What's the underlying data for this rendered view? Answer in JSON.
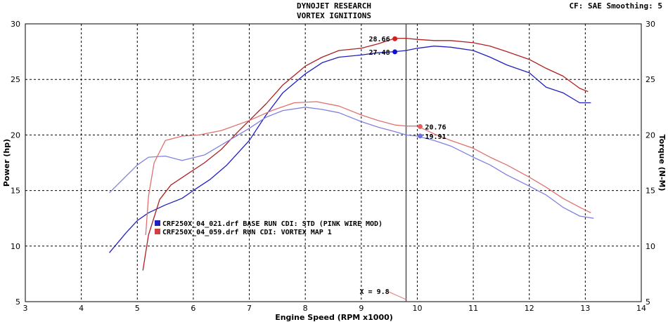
{
  "header": {
    "title_line1": "DYNOJET RESEARCH",
    "title_line2": "VORTEX IGNITIONS",
    "cf_info": "CF: SAE  Smoothing: 5"
  },
  "chart_data": {
    "type": "line",
    "title": "DYNOJET RESEARCH VORTEX IGNITIONS",
    "xlabel": "Engine Speed (RPM x1000)",
    "ylabel_left": "Power (hp)",
    "ylabel_right": "Torque (N-M)",
    "xlim": [
      3,
      14
    ],
    "ylim": [
      5,
      30
    ],
    "x_ticks": [
      "3",
      "4",
      "5",
      "6",
      "7",
      "8",
      "9",
      "10",
      "11",
      "12",
      "13",
      "14"
    ],
    "y_ticks_left": [
      "5",
      "10",
      "15",
      "20",
      "25",
      "30"
    ],
    "y_ticks_right": [
      "5",
      "10",
      "15",
      "20",
      "25",
      "30"
    ],
    "grid": true,
    "cursor": {
      "x": 9.8,
      "label": "X = 9.8"
    },
    "legend": [
      {
        "label": "CRF250X_04_021.drf BASE RUN CDI: STD (PINK WIRE MOD)",
        "color": "#2020c0"
      },
      {
        "label": "CRF250X_04_059.drf RUN CDI: VORTEX MAP 1",
        "color": "#d04040"
      }
    ],
    "series": [
      {
        "name": "BASE RUN CDI: STD (PINK WIRE MOD) - Power",
        "color": "#2020c0",
        "x": [
          4.5,
          4.8,
          5.0,
          5.2,
          5.5,
          5.8,
          6.0,
          6.3,
          6.6,
          7.0,
          7.3,
          7.6,
          8.0,
          8.3,
          8.6,
          9.0,
          9.3,
          9.6,
          9.8,
          10.0,
          10.3,
          10.6,
          11.0,
          11.3,
          11.6,
          12.0,
          12.3,
          12.6,
          12.9,
          13.1
        ],
        "y": [
          9.4,
          11.2,
          12.3,
          13.0,
          13.7,
          14.3,
          15.0,
          16.0,
          17.3,
          19.5,
          21.8,
          23.8,
          25.5,
          26.5,
          27.0,
          27.2,
          27.4,
          27.5,
          27.6,
          27.8,
          28.0,
          27.9,
          27.6,
          27.0,
          26.3,
          25.6,
          24.3,
          23.8,
          22.9,
          22.9
        ]
      },
      {
        "name": "RUN CDI: VORTEX MAP 1 - Power",
        "color": "#b02020",
        "x": [
          5.1,
          5.2,
          5.4,
          5.6,
          5.9,
          6.2,
          6.5,
          6.8,
          7.0,
          7.3,
          7.6,
          8.0,
          8.3,
          8.6,
          9.0,
          9.3,
          9.6,
          9.8,
          10.0,
          10.3,
          10.6,
          11.0,
          11.3,
          11.6,
          12.0,
          12.3,
          12.6,
          12.9,
          13.05
        ],
        "y": [
          7.8,
          11.0,
          14.2,
          15.5,
          16.5,
          17.5,
          18.7,
          20.3,
          21.3,
          22.8,
          24.5,
          26.2,
          27.0,
          27.6,
          27.8,
          28.2,
          28.7,
          28.7,
          28.6,
          28.5,
          28.5,
          28.3,
          28.0,
          27.5,
          26.8,
          26.0,
          25.3,
          24.2,
          23.9
        ]
      },
      {
        "name": "BASE RUN CDI: STD (PINK WIRE MOD) - Torque",
        "color": "#8080e0",
        "x": [
          4.5,
          4.7,
          5.0,
          5.2,
          5.5,
          5.8,
          6.2,
          6.6,
          7.0,
          7.3,
          7.6,
          8.0,
          8.3,
          8.6,
          9.0,
          9.3,
          9.6,
          9.8,
          10.0,
          10.3,
          10.6,
          11.0,
          11.3,
          11.6,
          12.0,
          12.3,
          12.6,
          12.9,
          13.15
        ],
        "y": [
          14.8,
          15.8,
          17.3,
          18.0,
          18.1,
          17.7,
          18.2,
          19.4,
          20.6,
          21.6,
          22.2,
          22.5,
          22.3,
          22.0,
          21.2,
          20.7,
          20.3,
          20.0,
          19.9,
          19.5,
          19.0,
          18.0,
          17.3,
          16.4,
          15.4,
          14.6,
          13.5,
          12.7,
          12.5
        ]
      },
      {
        "name": "RUN CDI: VORTEX MAP 1 - Torque",
        "color": "#e07070",
        "x": [
          5.15,
          5.2,
          5.3,
          5.5,
          5.8,
          6.1,
          6.5,
          7.0,
          7.4,
          7.8,
          8.2,
          8.6,
          9.0,
          9.3,
          9.6,
          9.8,
          10.0,
          10.3,
          10.6,
          11.0,
          11.3,
          11.6,
          12.0,
          12.3,
          12.6,
          12.9,
          13.1
        ],
        "y": [
          11.0,
          14.5,
          17.5,
          19.5,
          19.9,
          20.0,
          20.4,
          21.3,
          22.2,
          22.9,
          23.0,
          22.6,
          21.8,
          21.3,
          20.9,
          20.8,
          20.8,
          20.1,
          19.5,
          18.8,
          18.0,
          17.3,
          16.2,
          15.3,
          14.3,
          13.5,
          13.0
        ]
      }
    ],
    "markers": [
      {
        "series": 1,
        "x": 9.6,
        "y": 28.66,
        "label": "28.66",
        "color": "#d02020"
      },
      {
        "series": 0,
        "x": 9.6,
        "y": 27.48,
        "label": "27.48",
        "color": "#1010d0"
      },
      {
        "series": 3,
        "x": 10.05,
        "y": 20.76,
        "label": "20.76",
        "color": "#e06060"
      },
      {
        "series": 2,
        "x": 10.05,
        "y": 19.91,
        "label": "19.91",
        "color": "#7070e0"
      }
    ]
  }
}
